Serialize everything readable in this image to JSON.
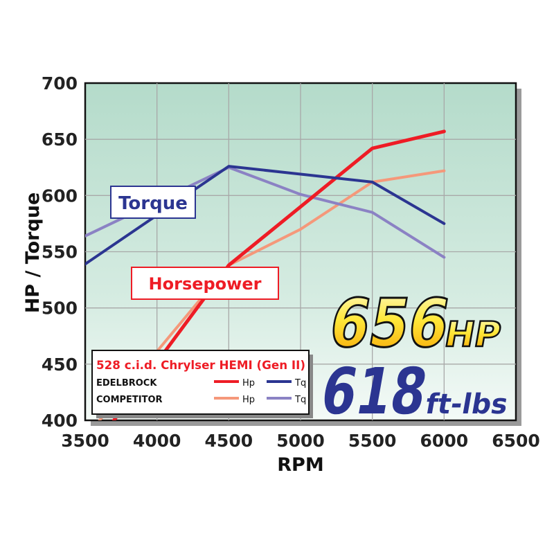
{
  "chart_data": {
    "type": "line",
    "xlabel": "RPM",
    "ylabel": "HP / Torque",
    "xlim": [
      3500,
      6500
    ],
    "ylim": [
      400,
      700
    ],
    "xticks": [
      "3500",
      "4000",
      "4500",
      "5000",
      "5500",
      "6000",
      "6500"
    ],
    "yticks": [
      "400",
      "450",
      "500",
      "550",
      "600",
      "650",
      "700"
    ],
    "grid": true,
    "legend": {
      "title": "528 c.i.d. Chrylser HEMI (Gen II)",
      "rows": [
        "EDELBROCK",
        "COMPETITOR"
      ],
      "hp_label": "Hp",
      "tq_label": "Tq",
      "placement": "bottom-left"
    },
    "series": [
      {
        "name": "EDELBROCK Hp",
        "color": "#ee1c25",
        "x": [
          3700,
          4500,
          5500,
          6000
        ],
        "y": [
          400,
          538,
          642,
          657
        ]
      },
      {
        "name": "COMPETITOR Hp",
        "color": "#f5987a",
        "x": [
          3600,
          4500,
          5000,
          5500,
          6000
        ],
        "y": [
          400,
          538,
          570,
          612,
          622
        ]
      },
      {
        "name": "EDELBROCK Tq",
        "color": "#2b3591",
        "x": [
          3500,
          4500,
          5500,
          6000
        ],
        "y": [
          539,
          626,
          612,
          575
        ]
      },
      {
        "name": "COMPETITOR Tq",
        "color": "#8b82c4",
        "x": [
          3500,
          4500,
          5000,
          5500,
          6000
        ],
        "y": [
          564,
          625,
          601,
          585,
          545
        ]
      }
    ],
    "annotations": {
      "torque_label": "Torque",
      "hp_label": "Horsepower",
      "peak_hp_value": "656",
      "peak_hp_unit": "HP",
      "peak_tq_value": "618",
      "peak_tq_unit": "ft-lbs"
    }
  }
}
